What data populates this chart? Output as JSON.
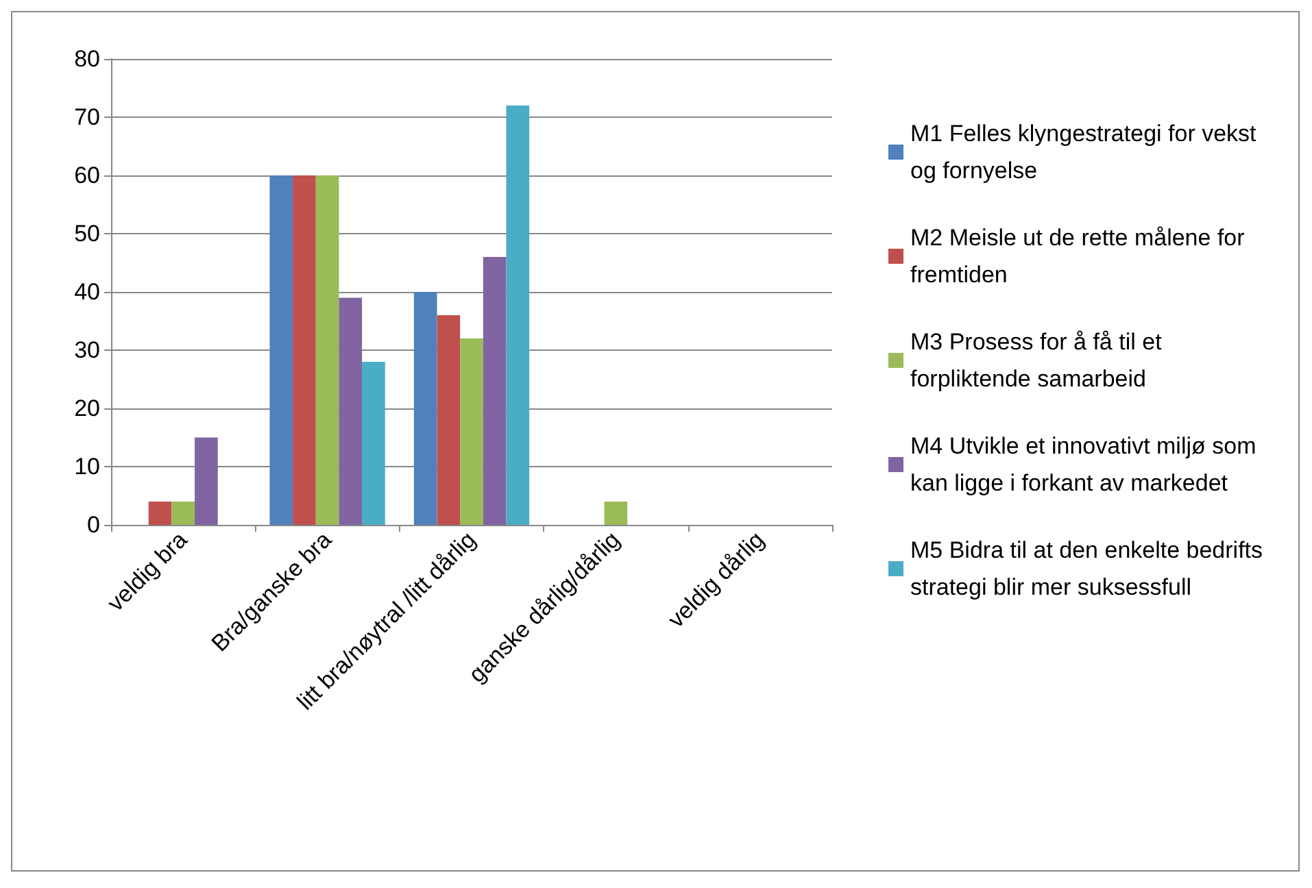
{
  "chart_data": {
    "type": "bar",
    "categories": [
      "veldig bra",
      "Bra/ganske bra",
      "litt bra/nøytral /litt dårlig",
      "ganske dårlig/dårlig",
      "veldig dårlig"
    ],
    "series": [
      {
        "name": "M1 Felles klyngestrategi for vekst og fornyelse",
        "color": "#4f81bd",
        "values": [
          0,
          60,
          40,
          0,
          0
        ]
      },
      {
        "name": "M2 Meisle ut de rette målene for fremtiden",
        "color": "#c0504d",
        "values": [
          4,
          60,
          36,
          0,
          0
        ]
      },
      {
        "name": "M3 Prosess for å få til et forpliktende samarbeid",
        "color": "#9bbb59",
        "values": [
          4,
          60,
          32,
          4,
          0
        ]
      },
      {
        "name": "M4 Utvikle et innovativt miljø som kan ligge i forkant av markedet",
        "color": "#8064a2",
        "values": [
          15,
          39,
          46,
          0,
          0
        ]
      },
      {
        "name": "M5 Bidra til at den enkelte bedrifts strategi blir mer suksessfull",
        "color": "#4bacc6",
        "values": [
          0,
          28,
          72,
          0,
          0
        ]
      }
    ],
    "ylim": [
      0,
      80
    ],
    "yticks": [
      0,
      10,
      20,
      30,
      40,
      50,
      60,
      70,
      80
    ],
    "grid": "y",
    "legend": "right"
  }
}
